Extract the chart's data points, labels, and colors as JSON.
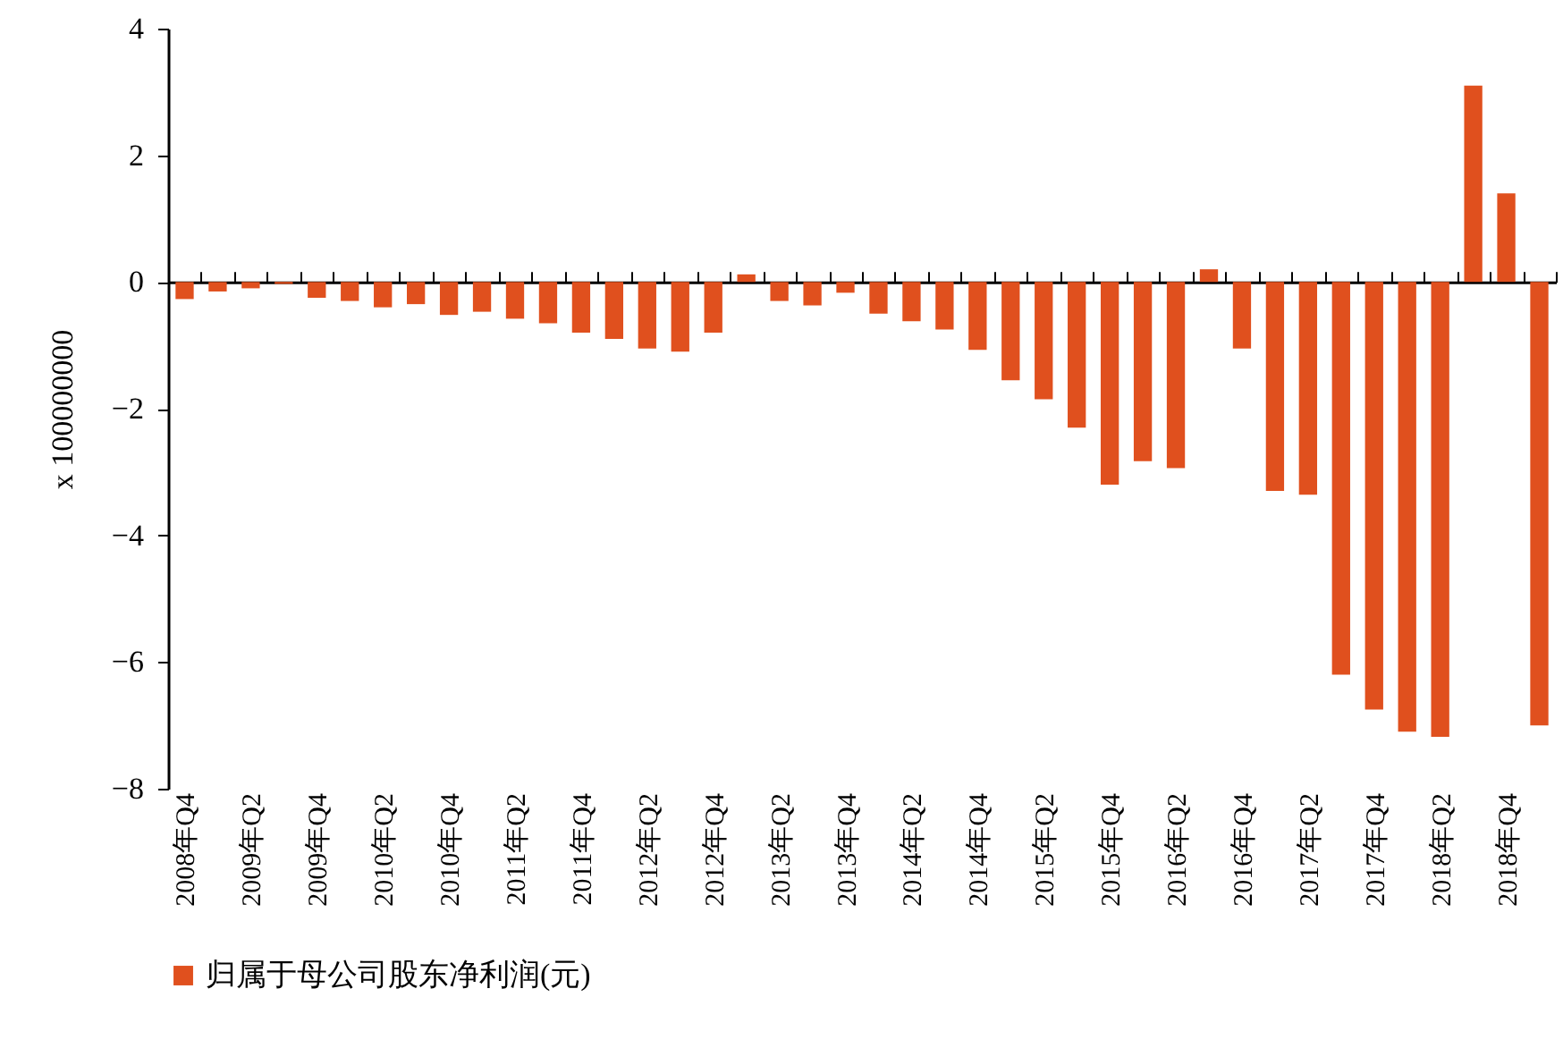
{
  "chart_data": {
    "type": "bar",
    "ylabel": "x 100000000",
    "categories": [
      "2008年Q4",
      null,
      "2009年Q2",
      null,
      "2009年Q4",
      null,
      "2010年Q2",
      null,
      "2010年Q4",
      null,
      "2011年Q2",
      null,
      "2011年Q4",
      null,
      "2012年Q2",
      null,
      "2012年Q4",
      null,
      "2013年Q2",
      null,
      "2013年Q4",
      null,
      "2014年Q2",
      null,
      "2014年Q4",
      null,
      "2015年Q2",
      null,
      "2015年Q4",
      null,
      "2016年Q2",
      null,
      "2016年Q4",
      null,
      "2017年Q2",
      null,
      "2017年Q4",
      null,
      "2018年Q2",
      null,
      "2018年Q4",
      null
    ],
    "series": [
      {
        "name": "归属于母公司股东净利润(元)",
        "color": "#e0501e",
        "values": [
          -0.27,
          -0.15,
          -0.1,
          -0.03,
          -0.25,
          -0.3,
          -0.4,
          -0.35,
          -0.52,
          -0.47,
          -0.58,
          -0.65,
          -0.8,
          -0.9,
          -1.05,
          -1.1,
          -0.8,
          0.12,
          -0.3,
          -0.37,
          -0.17,
          -0.5,
          -0.62,
          -0.75,
          -1.07,
          -1.55,
          -1.85,
          -2.3,
          -3.2,
          -2.83,
          -2.94,
          0.2,
          -1.05,
          -3.3,
          -3.36,
          -6.2,
          -6.75,
          -7.1,
          -7.18,
          3.1,
          1.4,
          -7.0
        ]
      }
    ],
    "ylim": [
      -8,
      4
    ],
    "yticks": [
      -8,
      -6,
      -4,
      -2,
      0,
      2,
      4
    ],
    "legend": "bottom"
  }
}
